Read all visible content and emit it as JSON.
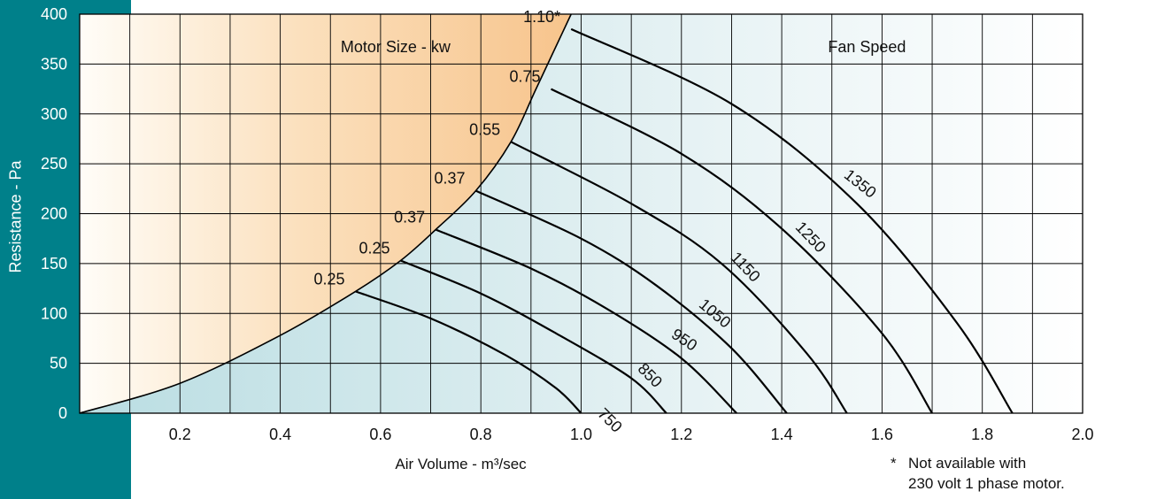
{
  "chart_data": {
    "type": "line",
    "xlabel": "Air Volume - m³/sec",
    "ylabel": "Resistance - Pa",
    "xlim": [
      0,
      2.0
    ],
    "ylim": [
      0,
      400
    ],
    "x_ticks": [
      "0.2",
      "0.4",
      "0.6",
      "0.8",
      "1.0",
      "1.2",
      "1.4",
      "1.6",
      "1.8",
      "2.0"
    ],
    "y_ticks": [
      "0",
      "50",
      "100",
      "150",
      "200",
      "250",
      "300",
      "350",
      "400"
    ],
    "grid": true,
    "region_labels": {
      "left": "Motor Size - kw",
      "right": "Fan Speed"
    },
    "motor_limit_curve": {
      "x": [
        0,
        0.2,
        0.4,
        0.55,
        0.64,
        0.71,
        0.79,
        0.86,
        0.91,
        0.98
      ],
      "y": [
        0,
        30,
        78,
        122,
        153,
        184,
        223,
        272,
        325,
        400
      ]
    },
    "series": [
      {
        "name": "750",
        "motor_kw": "0.25",
        "x": [
          0.55,
          0.7,
          0.85,
          0.95,
          1.0
        ],
        "y": [
          122,
          95,
          58,
          25,
          0
        ]
      },
      {
        "name": "850",
        "motor_kw": "0.25",
        "x": [
          0.64,
          0.8,
          0.95,
          1.1,
          1.17
        ],
        "y": [
          153,
          120,
          80,
          35,
          0
        ]
      },
      {
        "name": "950",
        "motor_kw": "0.37",
        "x": [
          0.71,
          0.9,
          1.05,
          1.2,
          1.31
        ],
        "y": [
          184,
          145,
          105,
          55,
          0
        ]
      },
      {
        "name": "1050",
        "motor_kw": "0.37",
        "x": [
          0.79,
          1.0,
          1.15,
          1.3,
          1.41
        ],
        "y": [
          223,
          175,
          128,
          65,
          0
        ]
      },
      {
        "name": "1150",
        "motor_kw": "0.55",
        "x": [
          0.86,
          1.1,
          1.28,
          1.45,
          1.53
        ],
        "y": [
          272,
          210,
          150,
          60,
          0
        ]
      },
      {
        "name": "1250",
        "motor_kw": "0.75",
        "x": [
          0.94,
          1.2,
          1.4,
          1.6,
          1.7
        ],
        "y": [
          325,
          260,
          185,
          80,
          0
        ]
      },
      {
        "name": "1350",
        "motor_kw": "1.10*",
        "x": [
          0.98,
          1.3,
          1.55,
          1.75,
          1.86
        ],
        "y": [
          385,
          310,
          210,
          90,
          0
        ]
      }
    ],
    "footnote_marker": "*",
    "footnote_lines": [
      "Not available with",
      "230 volt 1 phase motor."
    ]
  },
  "colors": {
    "sidebar": "#00808a",
    "curve": "#000000",
    "motor_region": "#f7c48c",
    "fan_region": "#b9dde2"
  }
}
